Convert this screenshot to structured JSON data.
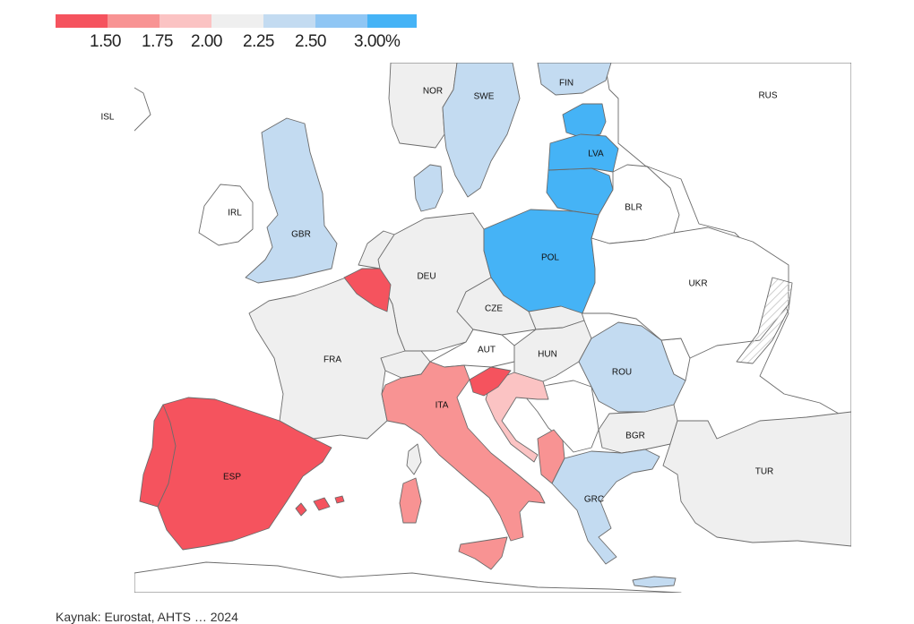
{
  "legend": {
    "colors": [
      "#f5535e",
      "#f89393",
      "#fbc3c3",
      "#efefef",
      "#c3dbf1",
      "#8fc6f4",
      "#45b3f6"
    ],
    "labels": [
      "1.50",
      "1.75",
      "2.00",
      "2.25",
      "2.50",
      "3.00%"
    ]
  },
  "colors": {
    "none": "#ffffff",
    "c1": "#f5535e",
    "c2": "#f89393",
    "c3": "#fbc3c3",
    "c4": "#efefef",
    "c5": "#c3dbf1",
    "c6": "#45b3f6"
  },
  "countries": {
    "ISL": "ISL",
    "NOR": "NOR",
    "SWE": "SWE",
    "FIN": "FIN",
    "RUS": "RUS",
    "LVA": "LVA",
    "BLR": "BLR",
    "IRL": "IRL",
    "GBR": "GBR",
    "DEU": "DEU",
    "POL": "POL",
    "UKR": "UKR",
    "CZE": "CZE",
    "FRA": "FRA",
    "AUT": "AUT",
    "HUN": "HUN",
    "ROU": "ROU",
    "ITA": "ITA",
    "BGR": "BGR",
    "ESP": "ESP",
    "GRC": "GRC",
    "TUR": "TUR"
  },
  "footer": "Kaynak: Eurostat, AHTS … 2024"
}
